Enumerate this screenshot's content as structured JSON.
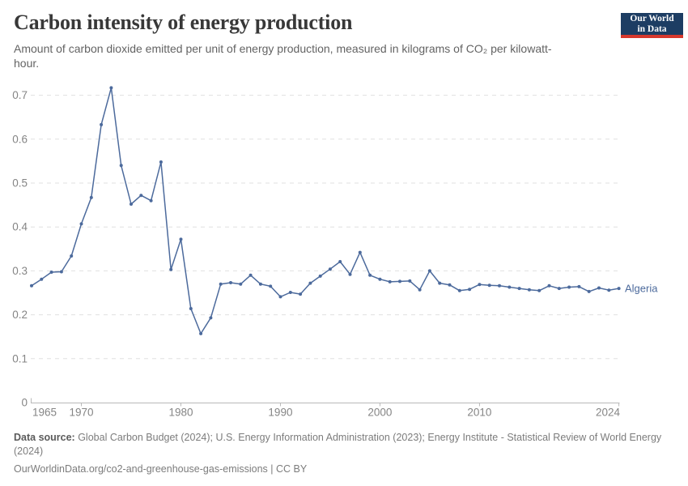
{
  "header": {
    "title": "Carbon intensity of energy production",
    "subtitle": "Amount of carbon dioxide emitted per unit of energy production, measured in kilograms of CO₂ per kilowatt-hour."
  },
  "logo": {
    "line1": "Our World",
    "line2": "in Data"
  },
  "colors": {
    "line": "#4C6A9C",
    "gridline": "#e0e0e0",
    "axis": "#b8b8b8",
    "tick_label": "#858585",
    "title_text": "#383838",
    "subtitle_text": "#636363",
    "footer_text": "#7c7c7c",
    "logo_bg": "#1d3d63",
    "logo_accent": "#d7382d"
  },
  "chart_data": {
    "type": "line",
    "title": "Carbon intensity of energy production",
    "xlabel": "",
    "ylabel": "kilograms of CO₂ per kilowatt-hour",
    "ylim": [
      0,
      0.74
    ],
    "yticks": [
      0,
      0.1,
      0.2,
      0.3,
      0.4,
      0.5,
      0.6,
      0.7
    ],
    "xticks": [
      1965,
      1970,
      1980,
      1990,
      2000,
      2010,
      2024
    ],
    "grid": "horizontal-dashed",
    "legend": "end-of-line-label",
    "series": [
      {
        "name": "Algeria",
        "color": "#4C6A9C",
        "x": [
          1965,
          1966,
          1967,
          1968,
          1969,
          1970,
          1971,
          1972,
          1973,
          1974,
          1975,
          1976,
          1977,
          1978,
          1979,
          1980,
          1981,
          1982,
          1983,
          1984,
          1985,
          1986,
          1987,
          1988,
          1989,
          1990,
          1991,
          1992,
          1993,
          1994,
          1995,
          1996,
          1997,
          1998,
          1999,
          2000,
          2001,
          2002,
          2003,
          2004,
          2005,
          2006,
          2007,
          2008,
          2009,
          2010,
          2011,
          2012,
          2013,
          2014,
          2015,
          2016,
          2017,
          2018,
          2019,
          2020,
          2021,
          2022,
          2023,
          2024
        ],
        "values": [
          0.266,
          0.281,
          0.297,
          0.298,
          0.334,
          0.407,
          0.467,
          0.633,
          0.717,
          0.54,
          0.452,
          0.472,
          0.46,
          0.548,
          0.303,
          0.372,
          0.214,
          0.157,
          0.193,
          0.27,
          0.273,
          0.27,
          0.29,
          0.27,
          0.265,
          0.241,
          0.251,
          0.247,
          0.272,
          0.288,
          0.304,
          0.321,
          0.292,
          0.342,
          0.29,
          0.281,
          0.275,
          0.276,
          0.277,
          0.257,
          0.3,
          0.272,
          0.268,
          0.255,
          0.258,
          0.269,
          0.267,
          0.266,
          0.263,
          0.26,
          0.257,
          0.255,
          0.266,
          0.26,
          0.263,
          0.264,
          0.253,
          0.261,
          0.256,
          0.26
        ]
      }
    ]
  },
  "footer": {
    "datasource_label": "Data source:",
    "datasource_text": " Global Carbon Budget (2024); U.S. Energy Information Administration (2023); Energy Institute - Statistical Review of World Energy (2024)",
    "license_line": "OurWorldinData.org/co2-and-greenhouse-gas-emissions | CC BY"
  }
}
